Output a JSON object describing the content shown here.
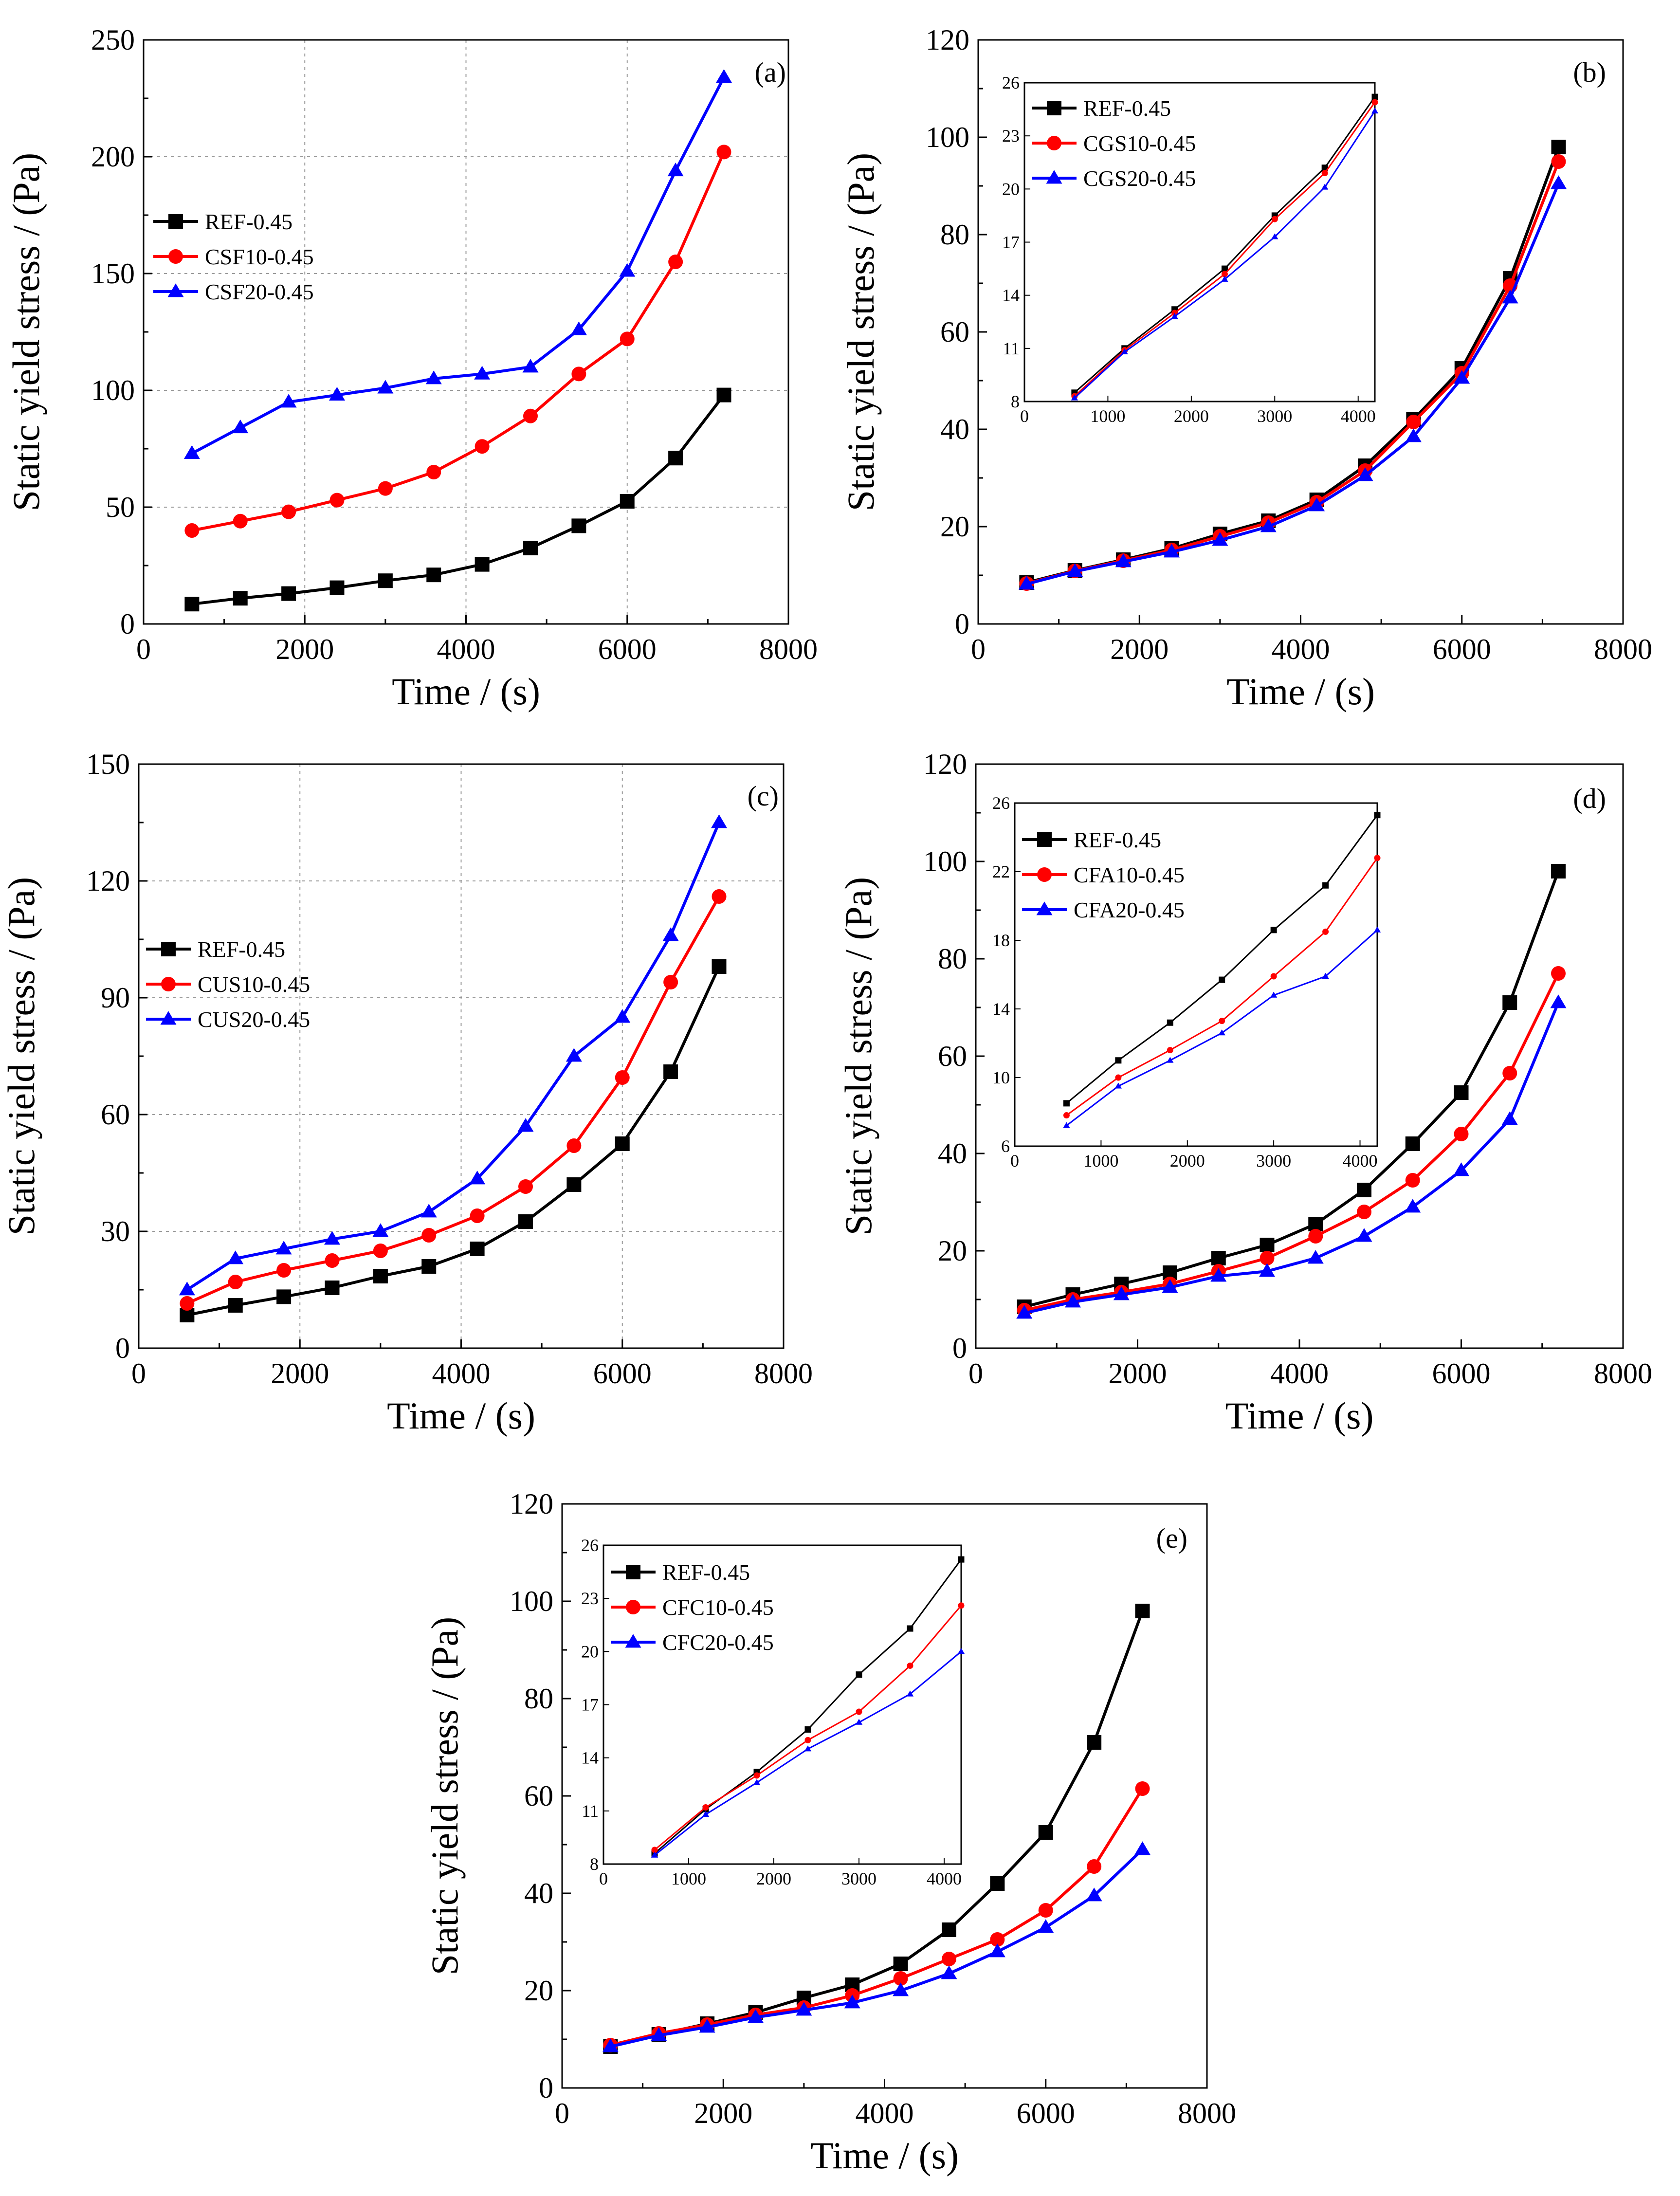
{
  "chart_data": [
    {
      "id": "a",
      "type": "line",
      "panel_label": "(a)",
      "xlabel": "Time / (s)",
      "ylabel": "Static yield stress / (Pa)",
      "xlim": [
        0,
        8000
      ],
      "ylim": [
        0,
        250
      ],
      "xticks": [
        0,
        2000,
        4000,
        6000,
        8000
      ],
      "yticks": [
        0,
        50,
        100,
        150,
        200,
        250
      ],
      "grid": true,
      "legend_position": "middle-left",
      "x": [
        600,
        1200,
        1800,
        2400,
        3000,
        3600,
        4200,
        4800,
        5400,
        6000,
        6600,
        7200
      ],
      "series": [
        {
          "name": "REF-0.45",
          "color": "#000000",
          "marker": "square",
          "values": [
            8.5,
            11,
            13,
            15.5,
            18.5,
            21,
            25.5,
            32.5,
            42,
            52.5,
            71,
            98
          ]
        },
        {
          "name": "CSF10-0.45",
          "color": "#ff0000",
          "marker": "circle",
          "values": [
            40,
            44,
            48,
            53,
            58,
            65,
            76,
            89,
            107,
            122,
            155,
            202
          ]
        },
        {
          "name": "CSF20-0.45",
          "color": "#0000ff",
          "marker": "triangle",
          "values": [
            73,
            84,
            95,
            98,
            101,
            105,
            107,
            110,
            126,
            151,
            194,
            234
          ]
        }
      ]
    },
    {
      "id": "b",
      "type": "line",
      "panel_label": "(b)",
      "xlabel": "Time / (s)",
      "ylabel": "Static yield stress / (Pa)",
      "xlim": [
        0,
        8000
      ],
      "ylim": [
        0,
        120
      ],
      "xticks": [
        0,
        2000,
        4000,
        6000,
        8000
      ],
      "yticks": [
        0,
        20,
        40,
        60,
        80,
        100,
        120
      ],
      "grid": false,
      "legend_position": "inset top-left",
      "x": [
        600,
        1200,
        1800,
        2400,
        3000,
        3600,
        4200,
        4800,
        5400,
        6000,
        6600,
        7200
      ],
      "series": [
        {
          "name": "REF-0.45",
          "color": "#000000",
          "marker": "square",
          "values": [
            8.5,
            11,
            13.2,
            15.5,
            18.5,
            21.2,
            25.5,
            32.5,
            42,
            52.5,
            71,
            98
          ]
        },
        {
          "name": "CGS10-0.45",
          "color": "#ff0000",
          "marker": "circle",
          "values": [
            8.3,
            10.9,
            13,
            15.2,
            18,
            20.8,
            25,
            31.5,
            41.5,
            51.5,
            69.5,
            95
          ]
        },
        {
          "name": "CGS20-0.45",
          "color": "#0000ff",
          "marker": "triangle",
          "values": [
            8.2,
            10.8,
            12.8,
            14.8,
            17.2,
            20,
            24.3,
            30.5,
            38.5,
            50.5,
            67,
            90.5
          ]
        }
      ],
      "inset": {
        "xlim": [
          0,
          4200
        ],
        "ylim": [
          8,
          26
        ],
        "xticks": [
          0,
          1000,
          2000,
          3000,
          4000
        ],
        "yticks": [
          8,
          11,
          14,
          17,
          20,
          23,
          26
        ],
        "x": [
          600,
          1200,
          1800,
          2400,
          3000,
          3600,
          4200
        ],
        "series": [
          {
            "name": "REF-0.45",
            "values": [
              8.5,
              11,
              13.2,
              15.5,
              18.5,
              21.2,
              25.2
            ]
          },
          {
            "name": "CGS10-0.45",
            "values": [
              8.3,
              10.9,
              13,
              15.2,
              18.3,
              20.9,
              24.9
            ]
          },
          {
            "name": "CGS20-0.45",
            "values": [
              8.2,
              10.8,
              12.8,
              14.9,
              17.3,
              20.1,
              24.4
            ]
          }
        ]
      }
    },
    {
      "id": "c",
      "type": "line",
      "panel_label": "(c)",
      "xlabel": "Time / (s)",
      "ylabel": "Static yield stress / (Pa)",
      "xlim": [
        0,
        8000
      ],
      "ylim": [
        0,
        150
      ],
      "xticks": [
        0,
        2000,
        4000,
        6000,
        8000
      ],
      "yticks": [
        0,
        30,
        60,
        90,
        120,
        150
      ],
      "grid": true,
      "legend_position": "middle-left",
      "x": [
        600,
        1200,
        1800,
        2400,
        3000,
        3600,
        4200,
        4800,
        5400,
        6000,
        6600,
        7200
      ],
      "series": [
        {
          "name": "REF-0.45",
          "color": "#000000",
          "marker": "square",
          "values": [
            8.5,
            11,
            13.2,
            15.5,
            18.5,
            21,
            25.5,
            32.5,
            42,
            52.5,
            71,
            98
          ]
        },
        {
          "name": "CUS10-0.45",
          "color": "#ff0000",
          "marker": "circle",
          "values": [
            11.5,
            17,
            20,
            22.5,
            25,
            29,
            34,
            41.5,
            52,
            69.5,
            94,
            116
          ]
        },
        {
          "name": "CUS20-0.45",
          "color": "#0000ff",
          "marker": "triangle",
          "values": [
            15,
            23,
            25.5,
            28,
            30,
            35,
            43.5,
            57,
            75,
            85,
            106,
            135
          ]
        }
      ]
    },
    {
      "id": "d",
      "type": "line",
      "panel_label": "(d)",
      "xlabel": "Time / (s)",
      "ylabel": "Static yield stress / (Pa)",
      "xlim": [
        0,
        8000
      ],
      "ylim": [
        0,
        120
      ],
      "xticks": [
        0,
        2000,
        4000,
        6000,
        8000
      ],
      "yticks": [
        0,
        20,
        40,
        60,
        80,
        100,
        120
      ],
      "grid": false,
      "legend_position": "inset top-left",
      "x": [
        600,
        1200,
        1800,
        2400,
        3000,
        3600,
        4200,
        4800,
        5400,
        6000,
        6600,
        7200
      ],
      "series": [
        {
          "name": "REF-0.45",
          "color": "#000000",
          "marker": "square",
          "values": [
            8.5,
            11,
            13.2,
            15.5,
            18.5,
            21.2,
            25.5,
            32.5,
            42,
            52.5,
            71,
            98
          ]
        },
        {
          "name": "CFA10-0.45",
          "color": "#ff0000",
          "marker": "circle",
          "values": [
            7.8,
            10,
            11.5,
            13.2,
            15.8,
            18.5,
            23,
            28,
            34.5,
            44,
            56.5,
            77
          ]
        },
        {
          "name": "CFA20-0.45",
          "color": "#0000ff",
          "marker": "triangle",
          "values": [
            7.2,
            9.5,
            11,
            12.5,
            14.8,
            15.8,
            18.5,
            23,
            29,
            36.5,
            47,
            71
          ]
        }
      ],
      "inset": {
        "xlim": [
          0,
          4200
        ],
        "ylim": [
          6,
          26
        ],
        "xticks": [
          0,
          1000,
          2000,
          3000,
          4000
        ],
        "yticks": [
          6,
          10,
          14,
          18,
          22,
          26
        ],
        "x": [
          600,
          1200,
          1800,
          2400,
          3000,
          3600,
          4200
        ],
        "series": [
          {
            "name": "REF-0.45",
            "values": [
              8.5,
              11,
              13.2,
              15.7,
              18.6,
              21.2,
              25.3
            ]
          },
          {
            "name": "CFA10-0.45",
            "values": [
              7.8,
              10,
              11.6,
              13.3,
              15.9,
              18.5,
              22.8
            ]
          },
          {
            "name": "CFA20-0.45",
            "values": [
              7.2,
              9.5,
              11,
              12.6,
              14.8,
              15.9,
              18.6
            ]
          }
        ]
      }
    },
    {
      "id": "e",
      "type": "line",
      "panel_label": "(e)",
      "xlabel": "Time / (s)",
      "ylabel": "Static yield stress / (Pa)",
      "xlim": [
        0,
        8000
      ],
      "ylim": [
        0,
        120
      ],
      "xticks": [
        0,
        2000,
        4000,
        6000,
        8000
      ],
      "yticks": [
        0,
        20,
        40,
        60,
        80,
        100,
        120
      ],
      "grid": false,
      "legend_position": "inset top-left",
      "x": [
        600,
        1200,
        1800,
        2400,
        3000,
        3600,
        4200,
        4800,
        5400,
        6000,
        6600,
        7200
      ],
      "series": [
        {
          "name": "REF-0.45",
          "color": "#000000",
          "marker": "square",
          "values": [
            8.5,
            11,
            13.2,
            15.5,
            18.5,
            21.2,
            25.5,
            32.5,
            42,
            52.5,
            71,
            98
          ]
        },
        {
          "name": "CFC10-0.45",
          "color": "#ff0000",
          "marker": "circle",
          "values": [
            8.8,
            11.2,
            13,
            15,
            16.5,
            19,
            22.5,
            26.5,
            30.5,
            36.5,
            45.5,
            61.5
          ]
        },
        {
          "name": "CFC20-0.45",
          "color": "#0000ff",
          "marker": "triangle",
          "values": [
            8.5,
            10.8,
            12.5,
            14.5,
            16,
            17.5,
            20,
            23.5,
            28,
            33,
            39.5,
            49
          ]
        }
      ],
      "inset": {
        "xlim": [
          0,
          4200
        ],
        "ylim": [
          8,
          26
        ],
        "xticks": [
          0,
          1000,
          2000,
          3000,
          4000
        ],
        "yticks": [
          8,
          11,
          14,
          17,
          20,
          23,
          26
        ],
        "x": [
          600,
          1200,
          1800,
          2400,
          3000,
          3600,
          4200
        ],
        "series": [
          {
            "name": "REF-0.45",
            "values": [
              8.6,
              11.1,
              13.2,
              15.6,
              18.7,
              21.3,
              25.2
            ]
          },
          {
            "name": "CFC10-0.45",
            "values": [
              8.8,
              11.2,
              13,
              15,
              16.6,
              19.2,
              22.6
            ]
          },
          {
            "name": "CFC20-0.45",
            "values": [
              8.5,
              10.8,
              12.6,
              14.5,
              16,
              17.6,
              20
            ]
          }
        ]
      }
    }
  ]
}
